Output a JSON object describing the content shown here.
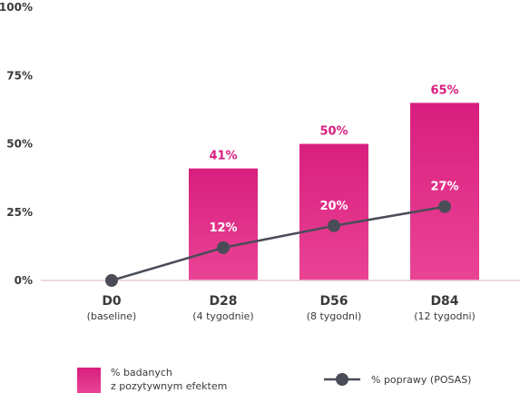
{
  "chart_data": {
    "type": "bar",
    "categories": [
      "D0",
      "D28",
      "D56",
      "D84"
    ],
    "category_sublabels": [
      "(baseline)",
      "(4 tygodnie)",
      "(8 tygodni)",
      "(12 tygodni)"
    ],
    "ylim": [
      0,
      100
    ],
    "yticks": [
      0,
      25,
      50,
      75,
      100
    ],
    "ytick_labels": [
      "0%",
      "25%",
      "50%",
      "75%",
      "100%"
    ],
    "grid": false,
    "legend_position": "bottom",
    "series": [
      {
        "type": "bar",
        "legend_lines": [
          "% badanych",
          "z pozytywnym efektem"
        ],
        "values": [
          null,
          41,
          50,
          65
        ],
        "labels": [
          "",
          "41%",
          "50%",
          "65%"
        ],
        "color": "#e0288a"
      },
      {
        "type": "line",
        "legend_lines": [
          "% poprawy (POSAS)"
        ],
        "values": [
          0,
          12,
          20,
          27
        ],
        "labels": [
          "",
          "12%",
          "20%",
          "27%"
        ],
        "color": "#4a4d57"
      }
    ],
    "colors": {
      "bar_top": "#d81e7f",
      "bar_bottom": "#ea4495",
      "bar_label": "#d81e7f",
      "line": "#4a4d57",
      "axis": "#e7ccd9"
    }
  }
}
